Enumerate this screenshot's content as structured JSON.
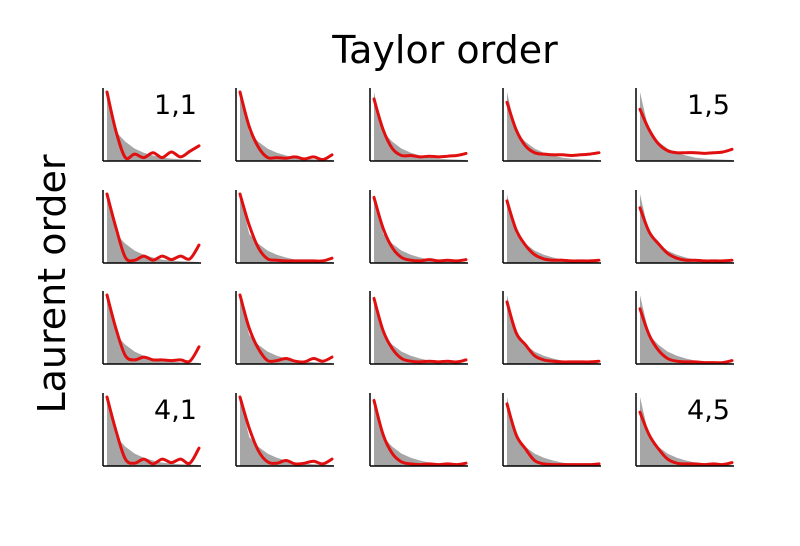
{
  "chart_data": {
    "type": "line",
    "layout": "small-multiples 4 rows x 5 columns",
    "xlabel": "Taylor order",
    "ylabel": "Laurent order",
    "corner_labels": [
      {
        "row": 1,
        "col": 1,
        "text": "1,1"
      },
      {
        "row": 1,
        "col": 5,
        "text": "1,5"
      },
      {
        "row": 4,
        "col": 1,
        "text": "4,1"
      },
      {
        "row": 4,
        "col": 5,
        "text": "4,5"
      }
    ],
    "axis_color": "#000000",
    "histogram_color": "#a6a6a6",
    "fit_color": "#e01010",
    "x": [
      0,
      0.1,
      0.2,
      0.3,
      0.4,
      0.5,
      0.6,
      0.7,
      0.8,
      0.9,
      1.0
    ],
    "histogram": [
      1.0,
      0.42,
      0.28,
      0.18,
      0.12,
      0.08,
      0.05,
      0.035,
      0.025,
      0.02,
      0.015
    ],
    "panels": [
      [
        {
          "y": [
            1.0,
            0.42,
            0.05,
            0.1,
            0.05,
            0.12,
            0.05,
            0.13,
            0.06,
            0.14,
            0.22
          ]
        },
        {
          "y": [
            1.0,
            0.5,
            0.2,
            0.05,
            0.05,
            0.04,
            0.06,
            0.03,
            0.06,
            0.02,
            0.09
          ]
        },
        {
          "y": [
            0.9,
            0.45,
            0.18,
            0.08,
            0.08,
            0.06,
            0.07,
            0.06,
            0.07,
            0.08,
            0.11
          ]
        },
        {
          "y": [
            0.85,
            0.45,
            0.22,
            0.12,
            0.1,
            0.09,
            0.09,
            0.08,
            0.09,
            0.1,
            0.12
          ]
        },
        {
          "y": [
            0.75,
            0.45,
            0.25,
            0.15,
            0.12,
            0.12,
            0.12,
            0.11,
            0.12,
            0.13,
            0.17
          ]
        }
      ],
      [
        {
          "y": [
            1.0,
            0.5,
            0.08,
            0.04,
            0.1,
            0.04,
            0.1,
            0.05,
            0.1,
            0.06,
            0.26
          ]
        },
        {
          "y": [
            1.0,
            0.55,
            0.22,
            0.06,
            0.04,
            0.03,
            0.03,
            0.03,
            0.03,
            0.03,
            0.07
          ]
        },
        {
          "y": [
            0.95,
            0.5,
            0.22,
            0.08,
            0.04,
            0.03,
            0.05,
            0.03,
            0.04,
            0.03,
            0.05
          ]
        },
        {
          "y": [
            0.9,
            0.48,
            0.26,
            0.12,
            0.06,
            0.04,
            0.04,
            0.03,
            0.03,
            0.03,
            0.04
          ]
        },
        {
          "y": [
            0.8,
            0.45,
            0.28,
            0.14,
            0.07,
            0.04,
            0.04,
            0.03,
            0.03,
            0.03,
            0.04
          ]
        }
      ],
      [
        {
          "y": [
            1.0,
            0.5,
            0.12,
            0.06,
            0.1,
            0.06,
            0.06,
            0.05,
            0.06,
            0.04,
            0.25
          ]
        },
        {
          "y": [
            1.0,
            0.52,
            0.22,
            0.05,
            0.05,
            0.08,
            0.04,
            0.03,
            0.08,
            0.04,
            0.1
          ]
        },
        {
          "y": [
            0.95,
            0.48,
            0.22,
            0.08,
            0.04,
            0.03,
            0.04,
            0.03,
            0.04,
            0.03,
            0.06
          ]
        },
        {
          "y": [
            0.9,
            0.45,
            0.28,
            0.12,
            0.06,
            0.04,
            0.03,
            0.03,
            0.03,
            0.03,
            0.04
          ]
        },
        {
          "y": [
            0.8,
            0.42,
            0.2,
            0.08,
            0.04,
            0.03,
            0.03,
            0.02,
            0.02,
            0.02,
            0.05
          ]
        }
      ],
      [
        {
          "y": [
            1.0,
            0.5,
            0.1,
            0.04,
            0.1,
            0.03,
            0.1,
            0.05,
            0.1,
            0.04,
            0.26
          ]
        },
        {
          "y": [
            1.0,
            0.55,
            0.22,
            0.06,
            0.04,
            0.08,
            0.03,
            0.04,
            0.07,
            0.03,
            0.1
          ]
        },
        {
          "y": [
            0.95,
            0.45,
            0.18,
            0.06,
            0.03,
            0.02,
            0.03,
            0.02,
            0.03,
            0.02,
            0.04
          ]
        },
        {
          "y": [
            0.9,
            0.45,
            0.25,
            0.08,
            0.03,
            0.02,
            0.02,
            0.02,
            0.02,
            0.02,
            0.03
          ]
        },
        {
          "y": [
            0.78,
            0.45,
            0.25,
            0.1,
            0.04,
            0.03,
            0.03,
            0.02,
            0.03,
            0.02,
            0.05
          ]
        }
      ]
    ]
  }
}
